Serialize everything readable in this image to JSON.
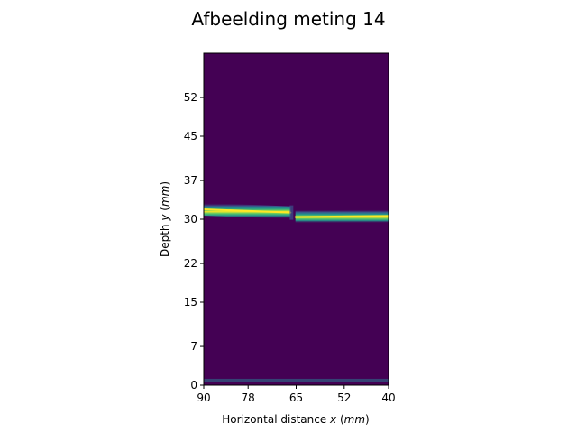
{
  "chart_data": {
    "type": "heatmap",
    "title": "Afbeelding meting 14",
    "xlabel": {
      "text": "Horizontal distance ",
      "var": "x",
      "unit": "mm"
    },
    "ylabel": {
      "text": "Depth ",
      "var": "y",
      "unit": "mm"
    },
    "x_ticks": [
      90,
      78,
      65,
      52,
      40
    ],
    "y_ticks": [
      0,
      7,
      15,
      22,
      30,
      37,
      45,
      52
    ],
    "xlim": [
      90,
      40
    ],
    "ylim": [
      0,
      60
    ],
    "colormap": "viridis",
    "background_color": "#440154",
    "features": [
      {
        "name": "reflector-line",
        "x": [
          90,
          66,
          65,
          40
        ],
        "depth": [
          31.8,
          31.2,
          30.4,
          30.6
        ],
        "gap_x": [
          66.5,
          65.2
        ],
        "peak_color": "#fde725"
      },
      {
        "name": "bottom-line",
        "depth": 0.5,
        "color": "#2a788e"
      }
    ]
  }
}
